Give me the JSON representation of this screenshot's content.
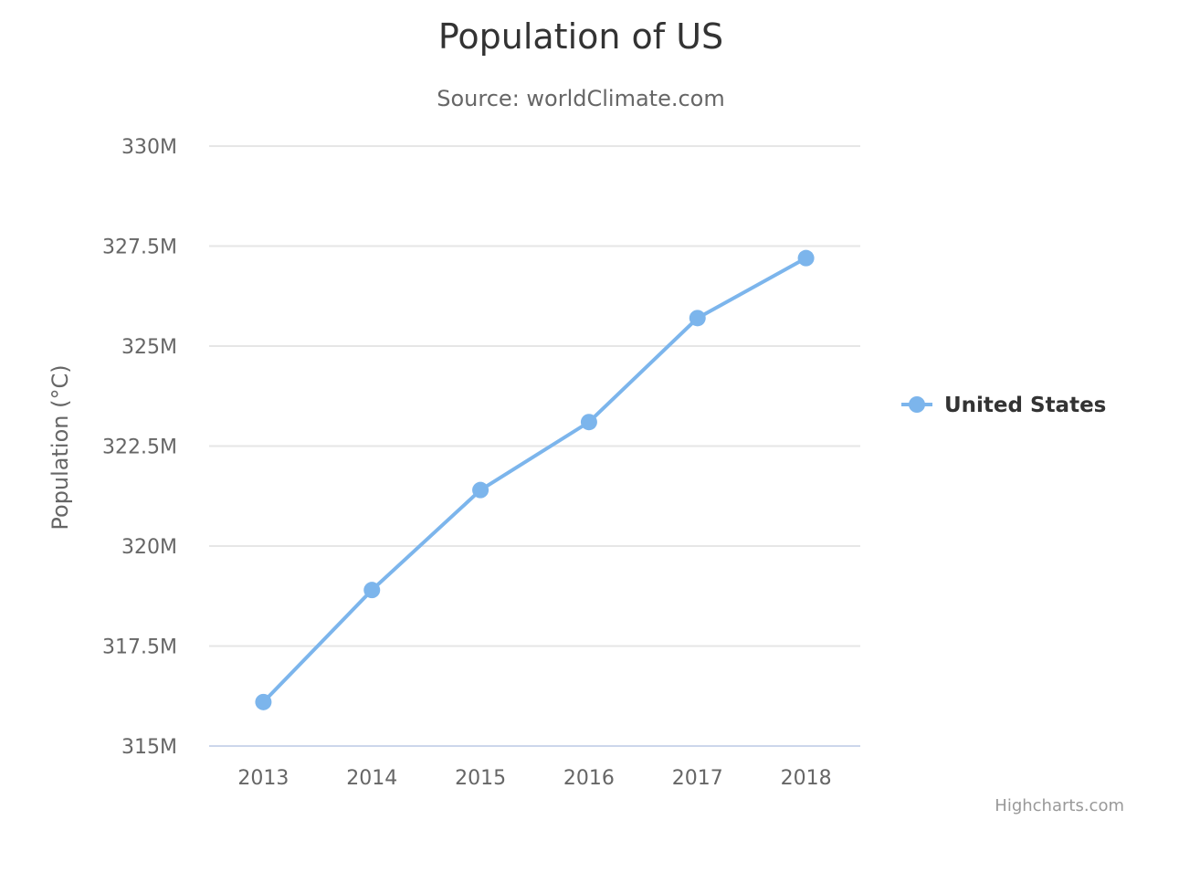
{
  "chart_data": {
    "type": "line",
    "title": "Population of US",
    "subtitle": "Source: worldClimate.com",
    "xlabel": "",
    "ylabel": "Population (°C)",
    "categories": [
      "2013",
      "2014",
      "2015",
      "2016",
      "2017",
      "2018"
    ],
    "y_ticks": [
      315,
      317.5,
      320,
      322.5,
      325,
      327.5,
      330
    ],
    "y_tick_labels": [
      "315M",
      "317.5M",
      "320M",
      "322.5M",
      "325M",
      "327.5M",
      "330M"
    ],
    "ylim": [
      315,
      330
    ],
    "grid": true,
    "legend_position": "right",
    "series": [
      {
        "name": "United States",
        "color": "#7cb5ec",
        "values": [
          316.1,
          318.9,
          321.4,
          323.1,
          325.7,
          327.2
        ]
      }
    ]
  },
  "credits": "Highcharts.com"
}
